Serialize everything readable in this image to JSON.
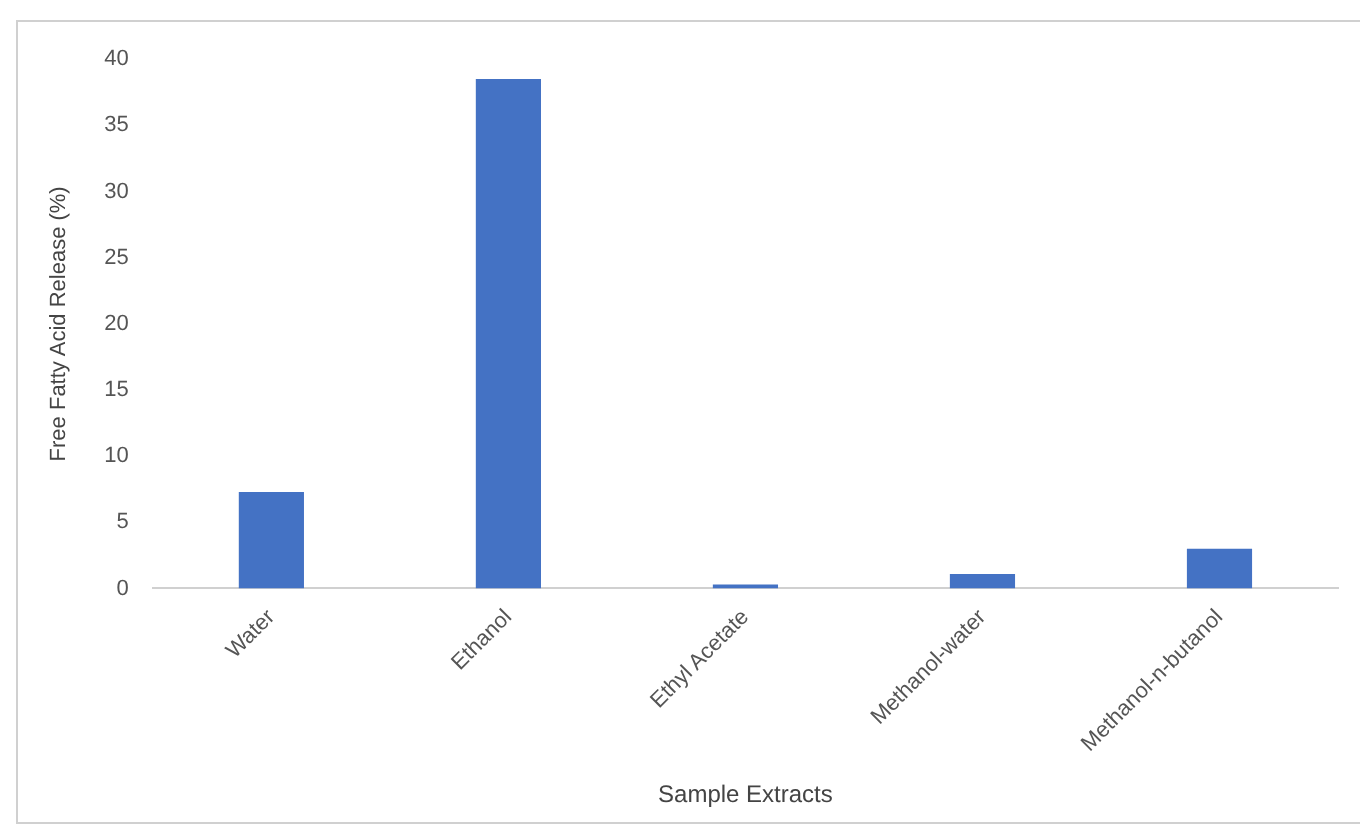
{
  "chart_data": {
    "type": "bar",
    "xlabel": "Sample Extracts",
    "ylabel": "Free Fatty Acid Release (%)",
    "categories": [
      "Water",
      "Ethanol",
      "Ethyl Acetate",
      "Methanol-water",
      "Methanol-n-butanol"
    ],
    "values": [
      7.3,
      38.5,
      0.3,
      1.1,
      3.0
    ],
    "color": "#4472c4",
    "ylim": [
      0,
      40
    ],
    "yticks": [
      0,
      5,
      10,
      15,
      20,
      25,
      30,
      35,
      40
    ],
    "grid": false,
    "legend": false
  }
}
